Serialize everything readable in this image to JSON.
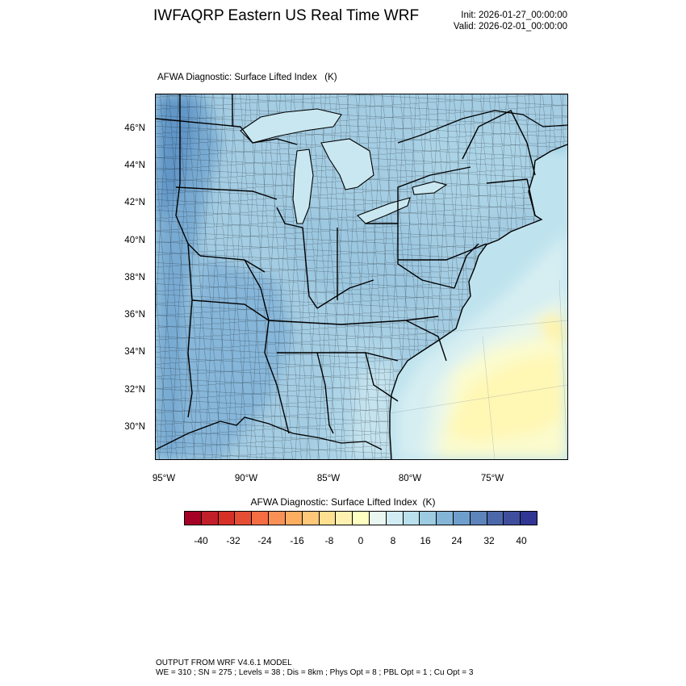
{
  "title": "IWFAQRP Eastern US Real Time WRF",
  "init_label": "Init: 2026-01-27_00:00:00",
  "valid_label": "Valid: 2026-02-01_00:00:00",
  "field_title": "AFWA Diagnostic: Surface Lifted Index   (K)",
  "lat_labels": [
    "46°N",
    "44°N",
    "42°N",
    "40°N",
    "38°N",
    "36°N",
    "34°N",
    "32°N",
    "30°N"
  ],
  "lon_labels": [
    "95°W",
    "90°W",
    "85°W",
    "80°W",
    "75°W"
  ],
  "colorbar": {
    "title": "AFWA Diagnostic: Surface Lifted Index  (K)",
    "ticks": [
      "-40",
      "-32",
      "-24",
      "-16",
      "-8",
      "0",
      "8",
      "16",
      "24",
      "32",
      "40"
    ],
    "colors": [
      "#a50026",
      "#c1202a",
      "#d73027",
      "#e54e35",
      "#f46d43",
      "#f99157",
      "#fdae61",
      "#fec779",
      "#fee090",
      "#fff1b0",
      "#ffffbf",
      "#eaf7f0",
      "#d1ecf2",
      "#b9e0ec",
      "#9dcbe1",
      "#84b5d6",
      "#6e9fcc",
      "#5d84bb",
      "#4c68aa",
      "#3f4e9c",
      "#313695"
    ]
  },
  "footer_line1": "OUTPUT FROM WRF V4.6.1 MODEL",
  "footer_line2": "WE = 310 ; SN = 275 ; Levels = 38 ; Dis = 8km ; Phys Opt = 8 ; PBL Opt = 1 ; Cu Opt = 3"
}
